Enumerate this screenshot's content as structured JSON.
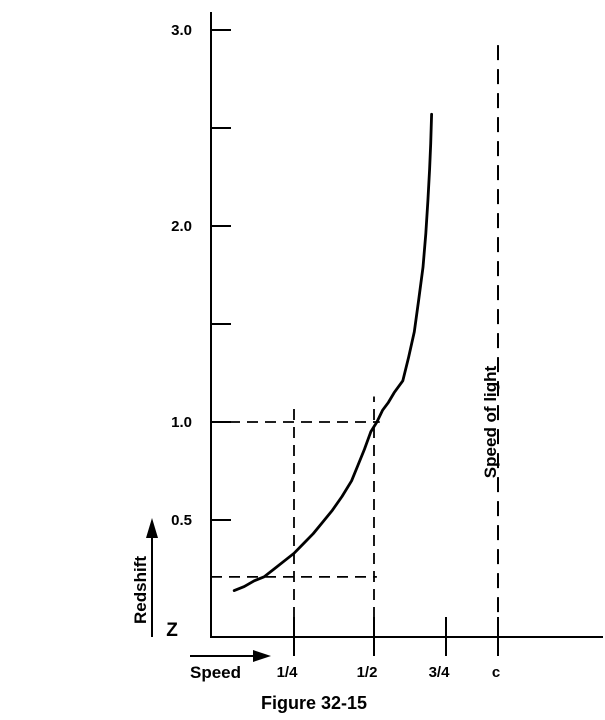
{
  "chart_data": {
    "type": "line",
    "title": "Figure 32-15",
    "xlabel": "Speed",
    "ylabel": "Redshift",
    "y_axis_symbol": "Z",
    "x_axis_unit": "fraction of the speed of light c",
    "grid": "off",
    "legend": "none",
    "xlim": [
      0,
      1.2
    ],
    "ylim": [
      0,
      3.15
    ],
    "x_ticks": [
      {
        "value": 0.25,
        "label": "1/4"
      },
      {
        "value": 0.5,
        "label": "1/2"
      },
      {
        "value": 0.75,
        "label": "3/4"
      },
      {
        "value": 1.0,
        "label": "c"
      }
    ],
    "y_ticks": [
      {
        "value": 0.5,
        "label": "0.5"
      },
      {
        "value": 1.0,
        "label": "1.0"
      },
      {
        "value": 1.5,
        "label": ""
      },
      {
        "value": 2.0,
        "label": "2.0"
      },
      {
        "value": 2.5,
        "label": ""
      },
      {
        "value": 3.0,
        "label": "3.0"
      }
    ],
    "asymptote": {
      "label": "Speed of light",
      "x": 1.0,
      "z_from": 0.03,
      "z_to": 2.96,
      "style": "dashed"
    },
    "guides": [
      {
        "orientation": "horizontal",
        "z": 1.0,
        "x_from": 0.0,
        "x_to": 0.52
      },
      {
        "orientation": "horizontal",
        "z": 0.21,
        "x_from": 0.0,
        "x_to": 0.51
      },
      {
        "orientation": "vertical",
        "x": 0.25,
        "z_from": 0.0,
        "z_to": 1.1
      },
      {
        "orientation": "vertical",
        "x": 0.5,
        "z_from": 0.0,
        "z_to": 1.13
      }
    ],
    "series": [
      {
        "name": "redshift-vs-speed-curve",
        "style": "solid",
        "points": [
          [
            0.07,
            0.14
          ],
          [
            0.1,
            0.16
          ],
          [
            0.13,
            0.19
          ],
          [
            0.16,
            0.21
          ],
          [
            0.19,
            0.25
          ],
          [
            0.22,
            0.29
          ],
          [
            0.25,
            0.33
          ],
          [
            0.28,
            0.38
          ],
          [
            0.31,
            0.43
          ],
          [
            0.34,
            0.49
          ],
          [
            0.37,
            0.55
          ],
          [
            0.4,
            0.62
          ],
          [
            0.43,
            0.7
          ],
          [
            0.45,
            0.78
          ],
          [
            0.47,
            0.86
          ],
          [
            0.49,
            0.95
          ],
          [
            0.51,
            1.0
          ],
          [
            0.53,
            1.06
          ],
          [
            0.55,
            1.1
          ],
          [
            0.57,
            1.15
          ],
          [
            0.6,
            1.21
          ],
          [
            0.62,
            1.33
          ],
          [
            0.64,
            1.46
          ],
          [
            0.655,
            1.62
          ],
          [
            0.67,
            1.79
          ],
          [
            0.68,
            1.96
          ],
          [
            0.687,
            2.13
          ],
          [
            0.693,
            2.29
          ],
          [
            0.697,
            2.42
          ],
          [
            0.7,
            2.57
          ]
        ]
      }
    ],
    "colors": {
      "ink": "#000000",
      "background": "#ffffff"
    }
  }
}
